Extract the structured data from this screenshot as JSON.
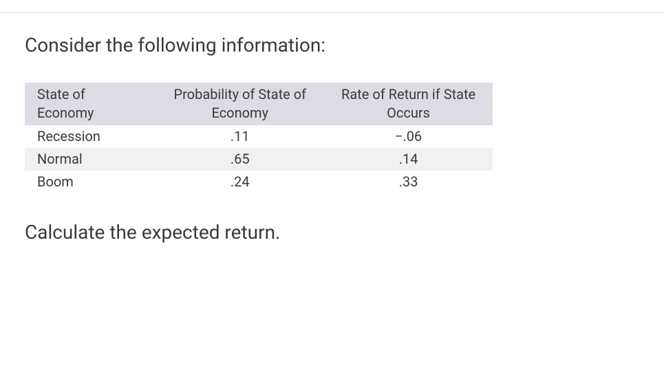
{
  "heading": "Consider the following information:",
  "table": {
    "columns": {
      "state": {
        "line1": "State of",
        "line2": "Economy"
      },
      "prob": {
        "line1": "Probability of State of",
        "line2": "Economy"
      },
      "rate": {
        "line1": "Rate of Return if State",
        "line2": "Occurs"
      }
    },
    "rows": [
      {
        "state": "Recession",
        "prob": ".11",
        "rate": "−.06"
      },
      {
        "state": "Normal",
        "prob": ".65",
        "rate": ".14"
      },
      {
        "state": "Boom",
        "prob": ".24",
        "rate": ".33"
      }
    ],
    "header_bg": "#dcdde4",
    "alt_row_bg": "#f1f1f4",
    "text_color": "#3a3a3a"
  },
  "prompt": "Calculate the expected return."
}
